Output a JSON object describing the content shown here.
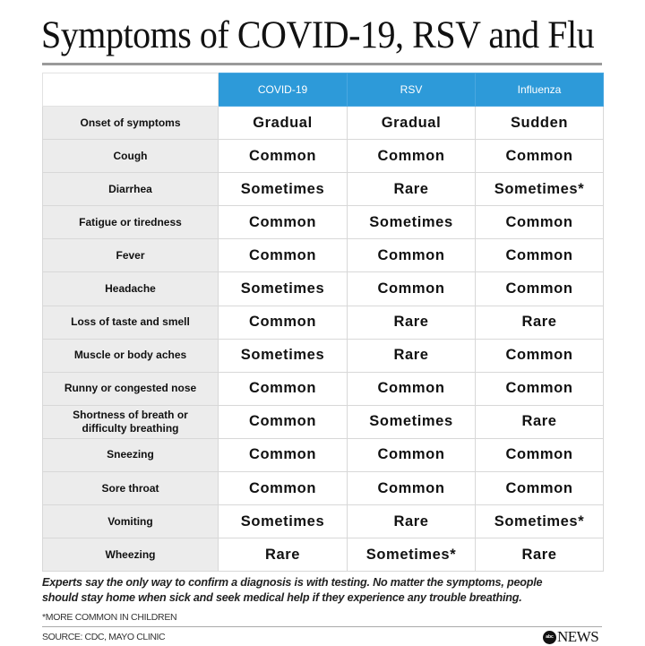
{
  "title": "Symptoms of COVID-19, RSV and Flu",
  "colors": {
    "header_blue": "#2d9ad9",
    "label_gray": "#ececec"
  },
  "columns": [
    "COVID-19",
    "RSV",
    "Influenza"
  ],
  "rows": [
    {
      "label": "Onset of symptoms",
      "values": [
        "Gradual",
        "Gradual",
        "Sudden"
      ]
    },
    {
      "label": "Cough",
      "values": [
        "Common",
        "Common",
        "Common"
      ]
    },
    {
      "label": "Diarrhea",
      "values": [
        "Sometimes",
        "Rare",
        "Sometimes*"
      ]
    },
    {
      "label": "Fatigue or tiredness",
      "values": [
        "Common",
        "Sometimes",
        "Common"
      ]
    },
    {
      "label": "Fever",
      "values": [
        "Common",
        "Common",
        "Common"
      ]
    },
    {
      "label": "Headache",
      "values": [
        "Sometimes",
        "Common",
        "Common"
      ]
    },
    {
      "label": "Loss of taste and smell",
      "values": [
        "Common",
        "Rare",
        "Rare"
      ]
    },
    {
      "label": "Muscle or body aches",
      "values": [
        "Sometimes",
        "Rare",
        "Common"
      ]
    },
    {
      "label": "Runny or congested nose",
      "values": [
        "Common",
        "Common",
        "Common"
      ]
    },
    {
      "label": "Shortness of breath or difficulty breathing",
      "values": [
        "Common",
        "Sometimes",
        "Rare"
      ]
    },
    {
      "label": "Sneezing",
      "values": [
        "Common",
        "Common",
        "Common"
      ]
    },
    {
      "label": "Sore throat",
      "values": [
        "Common",
        "Common",
        "Common"
      ]
    },
    {
      "label": "Vomiting",
      "values": [
        "Sometimes",
        "Rare",
        "Sometimes*"
      ]
    },
    {
      "label": "Wheezing",
      "values": [
        "Rare",
        "Sometimes*",
        "Rare"
      ]
    }
  ],
  "footer": {
    "line1": "Experts say the only way to confirm a diagnosis is with testing. No matter the symptoms, people",
    "line2": "should stay home when sick and seek medical help if they experience any trouble breathing.",
    "note": "*MORE COMMON IN CHILDREN",
    "source": "SOURCE: CDC, MAYO CLINIC",
    "logo_mark": "abc",
    "logo_text": "NEWS"
  }
}
